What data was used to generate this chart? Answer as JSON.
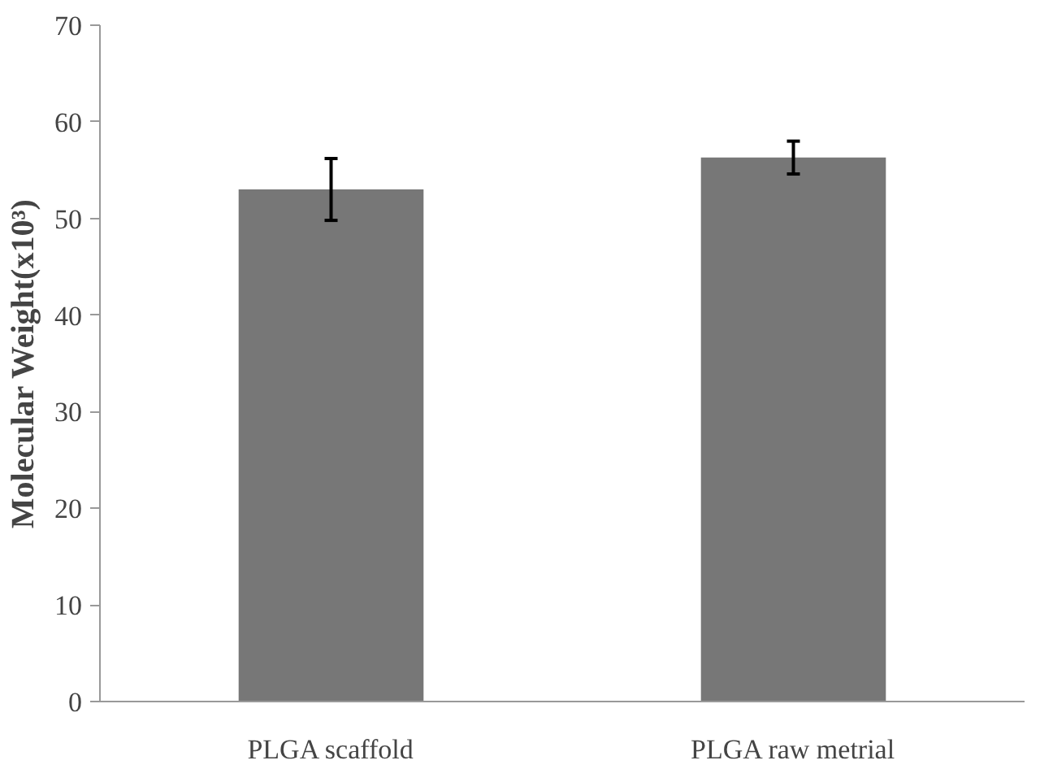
{
  "chart_data": {
    "type": "bar",
    "ylabel": "Molecular Weight(x10³)",
    "categories": [
      "PLGA scaffold",
      "PLGA raw metrial"
    ],
    "values": [
      53.0,
      56.3
    ],
    "errors": [
      3.2,
      1.7
    ],
    "color": "#777777",
    "ylim": [
      0,
      70
    ],
    "yticks": [
      0,
      10,
      20,
      30,
      40,
      50,
      60,
      70
    ],
    "grid": false
  }
}
